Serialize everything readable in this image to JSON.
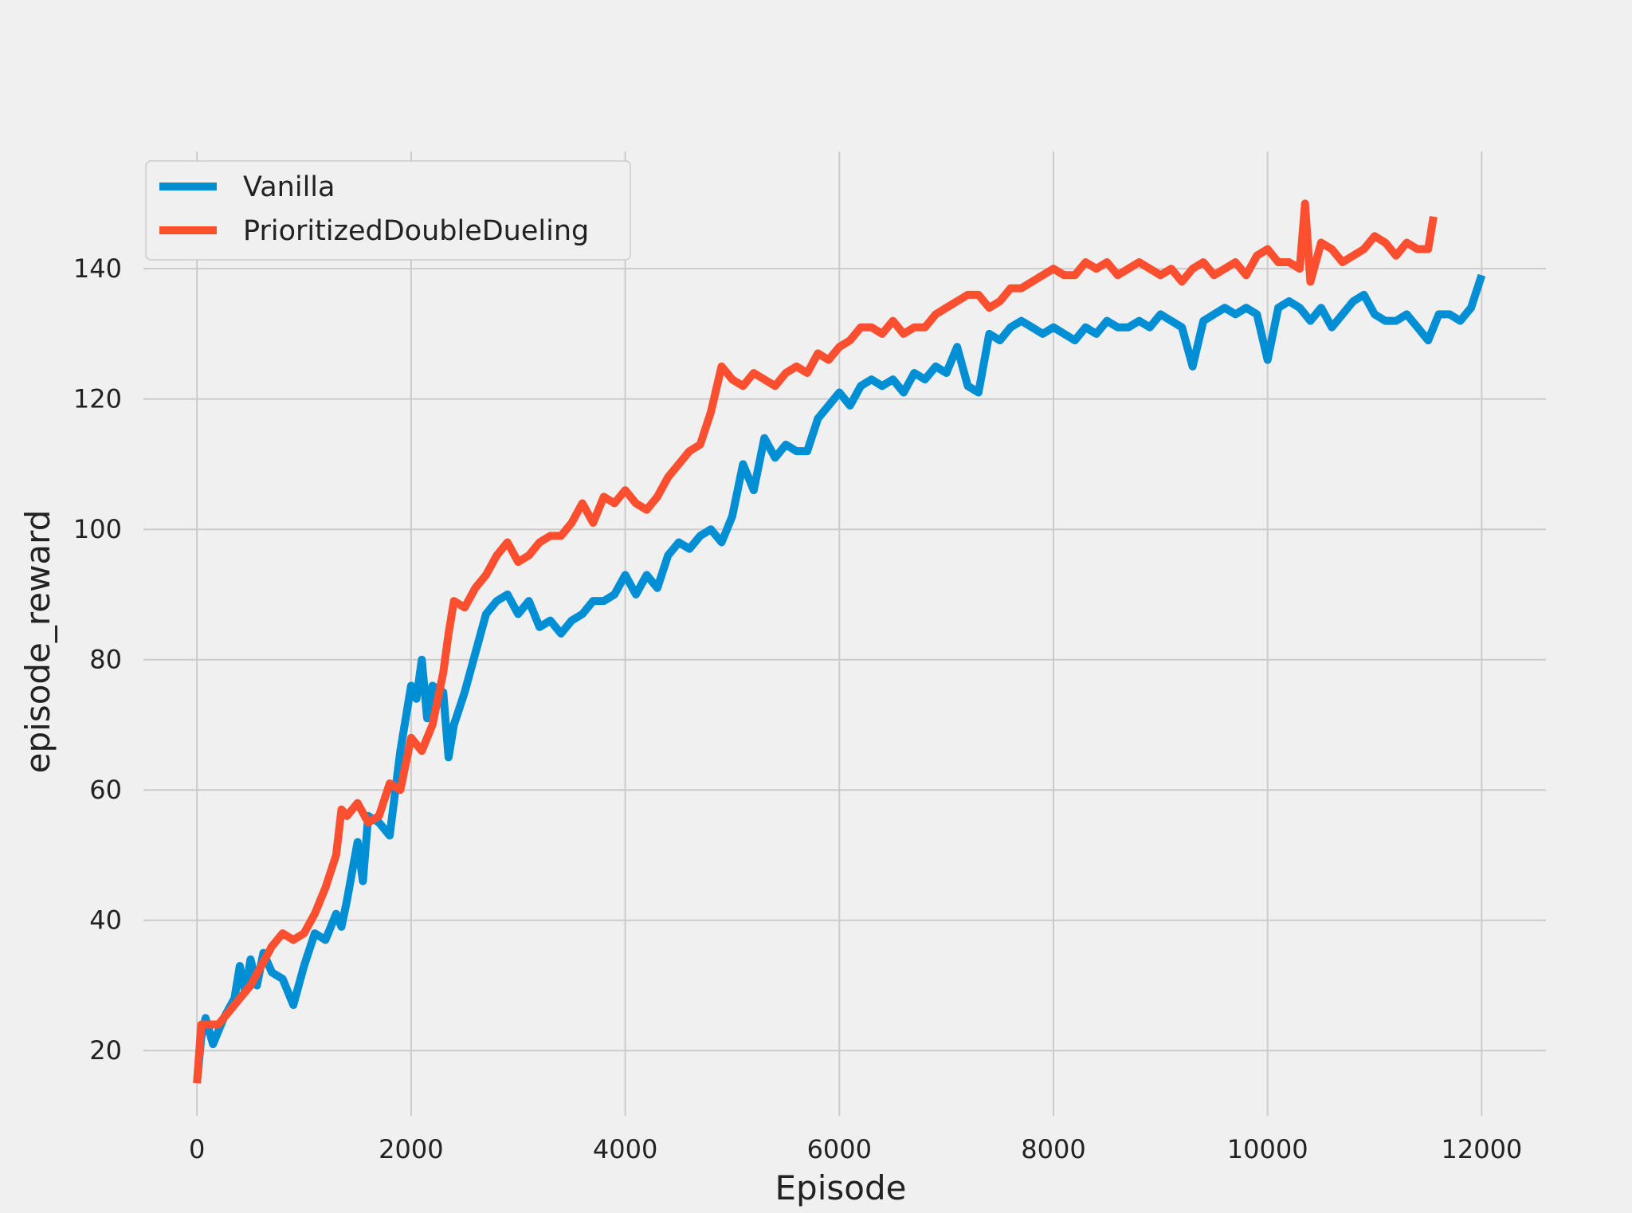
{
  "chart_data": {
    "type": "line",
    "title": "",
    "xlabel": "Episode",
    "ylabel": "episode_reward",
    "xlim": [
      -500,
      12600
    ],
    "ylim": [
      10,
      158
    ],
    "xticks": [
      0,
      2000,
      4000,
      6000,
      8000,
      10000,
      12000
    ],
    "yticks": [
      20,
      40,
      60,
      80,
      100,
      120,
      140
    ],
    "grid": true,
    "legend": "top-left",
    "series": [
      {
        "name": "Vanilla",
        "color": "#008fd5",
        "points": [
          [
            0,
            15
          ],
          [
            40,
            22
          ],
          [
            80,
            25
          ],
          [
            150,
            21
          ],
          [
            250,
            25
          ],
          [
            350,
            28
          ],
          [
            400,
            33
          ],
          [
            450,
            29
          ],
          [
            500,
            34
          ],
          [
            560,
            30
          ],
          [
            620,
            35
          ],
          [
            700,
            32
          ],
          [
            800,
            31
          ],
          [
            900,
            27
          ],
          [
            1000,
            33
          ],
          [
            1100,
            38
          ],
          [
            1200,
            37
          ],
          [
            1300,
            41
          ],
          [
            1350,
            39
          ],
          [
            1400,
            43
          ],
          [
            1500,
            52
          ],
          [
            1550,
            46
          ],
          [
            1600,
            56
          ],
          [
            1700,
            55
          ],
          [
            1800,
            53
          ],
          [
            1900,
            66
          ],
          [
            2000,
            76
          ],
          [
            2050,
            74
          ],
          [
            2100,
            80
          ],
          [
            2150,
            71
          ],
          [
            2200,
            76
          ],
          [
            2300,
            75
          ],
          [
            2350,
            65
          ],
          [
            2400,
            70
          ],
          [
            2500,
            75
          ],
          [
            2600,
            81
          ],
          [
            2700,
            87
          ],
          [
            2800,
            89
          ],
          [
            2900,
            90
          ],
          [
            3000,
            87
          ],
          [
            3100,
            89
          ],
          [
            3200,
            85
          ],
          [
            3300,
            86
          ],
          [
            3400,
            84
          ],
          [
            3500,
            86
          ],
          [
            3600,
            87
          ],
          [
            3700,
            89
          ],
          [
            3800,
            89
          ],
          [
            3900,
            90
          ],
          [
            4000,
            93
          ],
          [
            4100,
            90
          ],
          [
            4200,
            93
          ],
          [
            4300,
            91
          ],
          [
            4400,
            96
          ],
          [
            4500,
            98
          ],
          [
            4600,
            97
          ],
          [
            4700,
            99
          ],
          [
            4800,
            100
          ],
          [
            4900,
            98
          ],
          [
            5000,
            102
          ],
          [
            5100,
            110
          ],
          [
            5200,
            106
          ],
          [
            5300,
            114
          ],
          [
            5400,
            111
          ],
          [
            5500,
            113
          ],
          [
            5600,
            112
          ],
          [
            5700,
            112
          ],
          [
            5800,
            117
          ],
          [
            5900,
            119
          ],
          [
            6000,
            121
          ],
          [
            6100,
            119
          ],
          [
            6200,
            122
          ],
          [
            6300,
            123
          ],
          [
            6400,
            122
          ],
          [
            6500,
            123
          ],
          [
            6600,
            121
          ],
          [
            6700,
            124
          ],
          [
            6800,
            123
          ],
          [
            6900,
            125
          ],
          [
            7000,
            124
          ],
          [
            7100,
            128
          ],
          [
            7200,
            122
          ],
          [
            7300,
            121
          ],
          [
            7400,
            130
          ],
          [
            7500,
            129
          ],
          [
            7600,
            131
          ],
          [
            7700,
            132
          ],
          [
            7800,
            131
          ],
          [
            7900,
            130
          ],
          [
            8000,
            131
          ],
          [
            8100,
            130
          ],
          [
            8200,
            129
          ],
          [
            8300,
            131
          ],
          [
            8400,
            130
          ],
          [
            8500,
            132
          ],
          [
            8600,
            131
          ],
          [
            8700,
            131
          ],
          [
            8800,
            132
          ],
          [
            8900,
            131
          ],
          [
            9000,
            133
          ],
          [
            9100,
            132
          ],
          [
            9200,
            131
          ],
          [
            9300,
            125
          ],
          [
            9400,
            132
          ],
          [
            9500,
            133
          ],
          [
            9600,
            134
          ],
          [
            9700,
            133
          ],
          [
            9800,
            134
          ],
          [
            9900,
            133
          ],
          [
            10000,
            126
          ],
          [
            10100,
            134
          ],
          [
            10200,
            135
          ],
          [
            10300,
            134
          ],
          [
            10400,
            132
          ],
          [
            10500,
            134
          ],
          [
            10600,
            131
          ],
          [
            10700,
            133
          ],
          [
            10800,
            135
          ],
          [
            10900,
            136
          ],
          [
            11000,
            133
          ],
          [
            11100,
            132
          ],
          [
            11200,
            132
          ],
          [
            11300,
            133
          ],
          [
            11400,
            131
          ],
          [
            11500,
            129
          ],
          [
            11600,
            133
          ],
          [
            11700,
            133
          ],
          [
            11800,
            132
          ],
          [
            11900,
            134
          ],
          [
            12000,
            139
          ]
        ]
      },
      {
        "name": "PrioritizedDoubleDueling",
        "color": "#fc4f30",
        "points": [
          [
            0,
            15
          ],
          [
            40,
            24
          ],
          [
            100,
            24
          ],
          [
            200,
            24
          ],
          [
            300,
            26
          ],
          [
            400,
            28
          ],
          [
            500,
            30
          ],
          [
            600,
            33
          ],
          [
            700,
            36
          ],
          [
            800,
            38
          ],
          [
            900,
            37
          ],
          [
            1000,
            38
          ],
          [
            1100,
            41
          ],
          [
            1200,
            45
          ],
          [
            1300,
            50
          ],
          [
            1350,
            57
          ],
          [
            1400,
            56
          ],
          [
            1500,
            58
          ],
          [
            1600,
            55
          ],
          [
            1700,
            56
          ],
          [
            1800,
            61
          ],
          [
            1900,
            60
          ],
          [
            2000,
            68
          ],
          [
            2100,
            66
          ],
          [
            2200,
            70
          ],
          [
            2300,
            78
          ],
          [
            2350,
            84
          ],
          [
            2400,
            89
          ],
          [
            2500,
            88
          ],
          [
            2600,
            91
          ],
          [
            2700,
            93
          ],
          [
            2800,
            96
          ],
          [
            2900,
            98
          ],
          [
            3000,
            95
          ],
          [
            3100,
            96
          ],
          [
            3200,
            98
          ],
          [
            3300,
            99
          ],
          [
            3400,
            99
          ],
          [
            3500,
            101
          ],
          [
            3600,
            104
          ],
          [
            3700,
            101
          ],
          [
            3800,
            105
          ],
          [
            3900,
            104
          ],
          [
            4000,
            106
          ],
          [
            4100,
            104
          ],
          [
            4200,
            103
          ],
          [
            4300,
            105
          ],
          [
            4400,
            108
          ],
          [
            4500,
            110
          ],
          [
            4600,
            112
          ],
          [
            4700,
            113
          ],
          [
            4800,
            118
          ],
          [
            4900,
            125
          ],
          [
            5000,
            123
          ],
          [
            5100,
            122
          ],
          [
            5200,
            124
          ],
          [
            5300,
            123
          ],
          [
            5400,
            122
          ],
          [
            5500,
            124
          ],
          [
            5600,
            125
          ],
          [
            5700,
            124
          ],
          [
            5800,
            127
          ],
          [
            5900,
            126
          ],
          [
            6000,
            128
          ],
          [
            6100,
            129
          ],
          [
            6200,
            131
          ],
          [
            6300,
            131
          ],
          [
            6400,
            130
          ],
          [
            6500,
            132
          ],
          [
            6600,
            130
          ],
          [
            6700,
            131
          ],
          [
            6800,
            131
          ],
          [
            6900,
            133
          ],
          [
            7000,
            134
          ],
          [
            7100,
            135
          ],
          [
            7200,
            136
          ],
          [
            7300,
            136
          ],
          [
            7400,
            134
          ],
          [
            7500,
            135
          ],
          [
            7600,
            137
          ],
          [
            7700,
            137
          ],
          [
            7800,
            138
          ],
          [
            7900,
            139
          ],
          [
            8000,
            140
          ],
          [
            8100,
            139
          ],
          [
            8200,
            139
          ],
          [
            8300,
            141
          ],
          [
            8400,
            140
          ],
          [
            8500,
            141
          ],
          [
            8600,
            139
          ],
          [
            8700,
            140
          ],
          [
            8800,
            141
          ],
          [
            8900,
            140
          ],
          [
            9000,
            139
          ],
          [
            9100,
            140
          ],
          [
            9200,
            138
          ],
          [
            9300,
            140
          ],
          [
            9400,
            141
          ],
          [
            9500,
            139
          ],
          [
            9600,
            140
          ],
          [
            9700,
            141
          ],
          [
            9800,
            139
          ],
          [
            9900,
            142
          ],
          [
            10000,
            143
          ],
          [
            10100,
            141
          ],
          [
            10200,
            141
          ],
          [
            10300,
            140
          ],
          [
            10350,
            150
          ],
          [
            10400,
            138
          ],
          [
            10500,
            144
          ],
          [
            10600,
            143
          ],
          [
            10700,
            141
          ],
          [
            10800,
            142
          ],
          [
            10900,
            143
          ],
          [
            11000,
            145
          ],
          [
            11100,
            144
          ],
          [
            11200,
            142
          ],
          [
            11300,
            144
          ],
          [
            11400,
            143
          ],
          [
            11500,
            143
          ],
          [
            11550,
            148
          ]
        ]
      }
    ]
  }
}
